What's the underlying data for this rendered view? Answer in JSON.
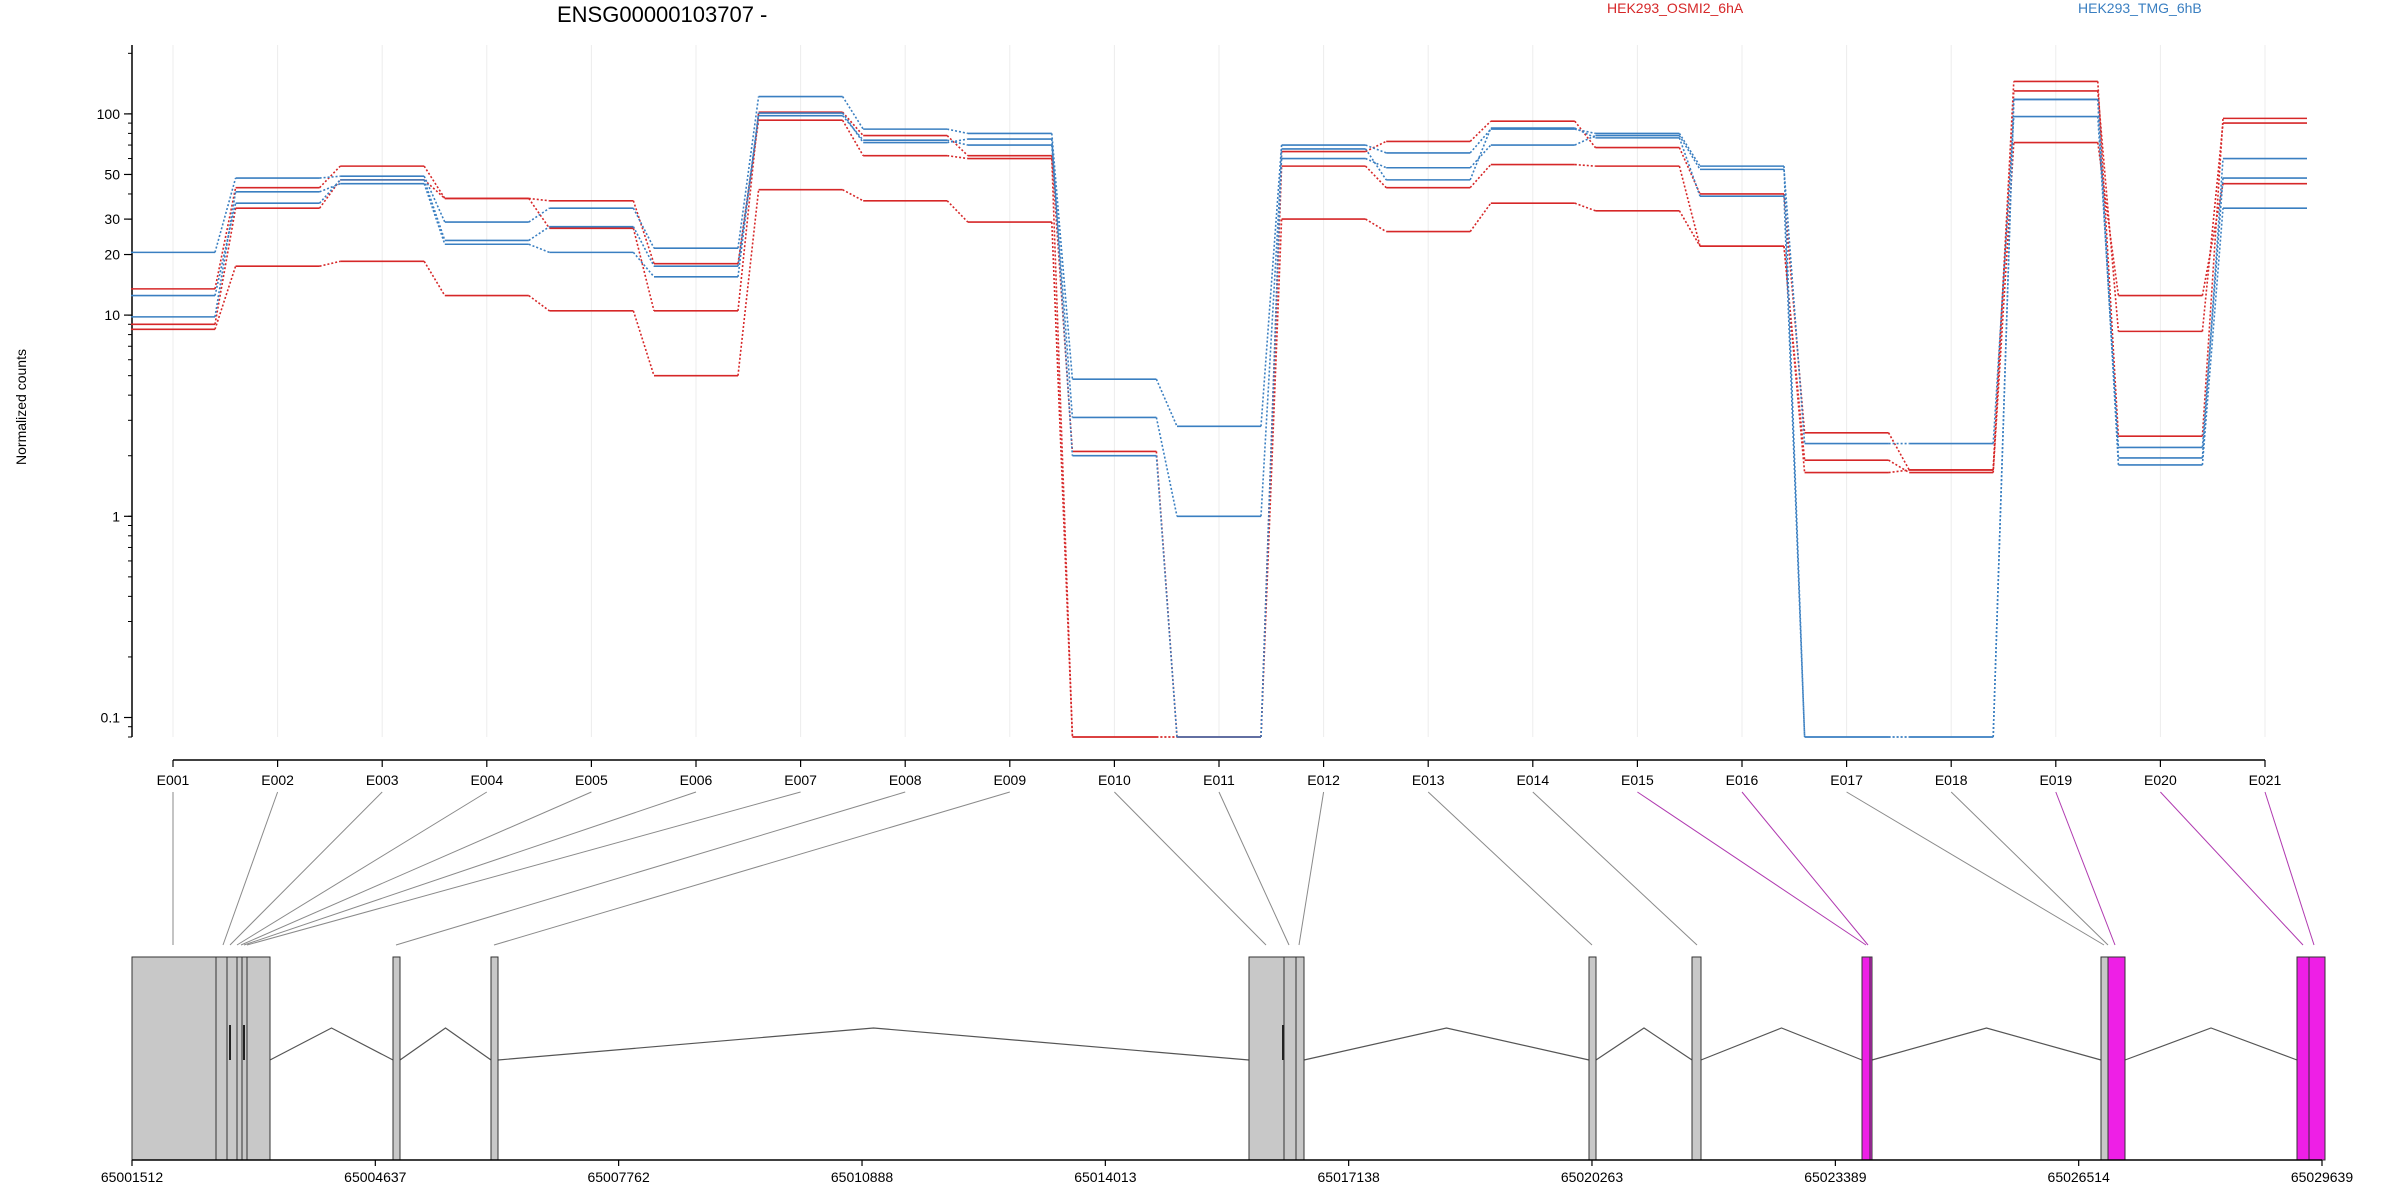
{
  "chart_data": {
    "type": "line",
    "title": "ENSG00000103707 -",
    "ylabel": "Normalized counts",
    "yscale": "log",
    "ylim": [
      0.08,
      220
    ],
    "yticks": [
      "100",
      "50",
      "30",
      "20",
      "10",
      "1",
      "0.1"
    ],
    "grid": true,
    "legend_position": "top",
    "legend": [
      {
        "label": "HEK293_OSMI2_6hA",
        "color": "#d62728"
      },
      {
        "label": "HEK293_TMG_6hB",
        "color": "#3a7fc1"
      }
    ],
    "categories": [
      "E001",
      "E002",
      "E003",
      "E004",
      "E005",
      "E006",
      "E007",
      "E008",
      "E009",
      "E010",
      "E011",
      "E012",
      "E013",
      "E014",
      "E015",
      "E016",
      "E017",
      "E018",
      "E019",
      "E020",
      "E021"
    ],
    "series": [
      {
        "group": "HEK293_OSMI2_6hA",
        "color": "#d62728",
        "values": [
          13.5,
          43,
          55,
          38,
          37,
          18,
          93,
          62,
          60,
          0.08,
          0.08,
          55,
          43,
          56,
          55,
          22,
          1.9,
          1.65,
          72,
          12.5,
          45
        ]
      },
      {
        "group": "HEK293_OSMI2_6hA",
        "color": "#d62728",
        "values": [
          9.0,
          34,
          47,
          38,
          27,
          10.5,
          102,
          78,
          62,
          2.1,
          0.08,
          65,
          73,
          92,
          68,
          40,
          2.6,
          1.7,
          130,
          8.3,
          90
        ]
      },
      {
        "group": "HEK293_OSMI2_6hA",
        "color": "#d62728",
        "values": [
          8.5,
          17.5,
          18.5,
          12.5,
          10.5,
          5.0,
          42,
          37,
          29,
          0.08,
          0.08,
          30,
          26,
          36,
          33,
          22,
          1.65,
          1.7,
          145,
          2.5,
          95
        ]
      },
      {
        "group": "HEK293_TMG_6hB",
        "color": "#3a7fc1",
        "values": [
          20.5,
          48,
          49,
          29,
          34,
          21.5,
          122,
          84,
          80,
          4.8,
          2.8,
          70,
          64,
          84,
          80,
          55,
          0.08,
          0.08,
          118,
          1.95,
          60
        ]
      },
      {
        "group": "HEK293_TMG_6hB",
        "color": "#3a7fc1",
        "values": [
          12.5,
          36,
          47,
          23.5,
          27.5,
          17.5,
          98,
          74,
          70,
          3.1,
          1.0,
          60,
          54,
          70,
          78,
          53,
          2.3,
          2.3,
          97,
          2.2,
          48
        ]
      },
      {
        "group": "HEK293_TMG_6hB",
        "color": "#3a7fc1",
        "values": [
          9.8,
          41,
          45,
          22.5,
          20.5,
          15.5,
          101,
          72,
          75,
          2.0,
          0.08,
          67,
          47,
          85,
          76,
          39,
          0.08,
          0.08,
          118,
          1.8,
          34
        ]
      }
    ],
    "gene_model": {
      "coordinates": [
        "65001512",
        "65004637",
        "65007762",
        "65010888",
        "65014013",
        "65017138",
        "65020263",
        "65023389",
        "65026514",
        "65029639"
      ],
      "coordinate_range": [
        65001512,
        65029639
      ],
      "exon_color": "#c8c8c8",
      "highlight_color": "#ee1fe6",
      "highlighted_exons": [
        "E015",
        "E016",
        "E019",
        "E020",
        "E021"
      ]
    }
  }
}
